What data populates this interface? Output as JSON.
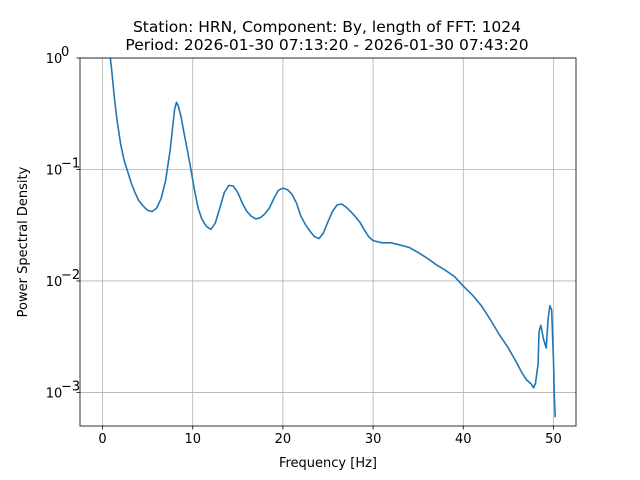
{
  "chart_data": {
    "type": "line",
    "title": "Station: HRN, Component: By, length of FFT: 1024",
    "subtitle": "Period: 2026-01-30 07:13:20 - 2026-01-30 07:43:20",
    "xlabel": "Frequency [Hz]",
    "ylabel": "Power Spectral Density",
    "xlim": [
      -2.5,
      52.5
    ],
    "ylim": [
      0.0005,
      1
    ],
    "yscale": "log",
    "grid": true,
    "xticks": [
      0,
      10,
      20,
      30,
      40,
      50
    ],
    "xtick_labels": [
      "0",
      "10",
      "20",
      "30",
      "40",
      "50"
    ],
    "yticks": [
      0.001,
      0.01,
      0.1,
      1
    ],
    "ytick_labels": [
      [
        "10",
        "−3"
      ],
      [
        "10",
        "−2"
      ],
      [
        "10",
        "−1"
      ],
      [
        "10",
        "0"
      ]
    ],
    "series": [
      {
        "color": "#1f77b4",
        "points": [
          [
            0.7,
            1.3
          ],
          [
            1.0,
            0.8
          ],
          [
            1.3,
            0.45
          ],
          [
            1.6,
            0.28
          ],
          [
            2.0,
            0.17
          ],
          [
            2.4,
            0.12
          ],
          [
            2.8,
            0.095
          ],
          [
            3.2,
            0.075
          ],
          [
            3.6,
            0.062
          ],
          [
            4.0,
            0.053
          ],
          [
            4.5,
            0.047
          ],
          [
            5.0,
            0.043
          ],
          [
            5.5,
            0.042
          ],
          [
            6.0,
            0.045
          ],
          [
            6.5,
            0.055
          ],
          [
            7.0,
            0.08
          ],
          [
            7.5,
            0.15
          ],
          [
            7.8,
            0.25
          ],
          [
            8.0,
            0.35
          ],
          [
            8.2,
            0.4
          ],
          [
            8.4,
            0.37
          ],
          [
            8.7,
            0.3
          ],
          [
            9.0,
            0.22
          ],
          [
            9.4,
            0.15
          ],
          [
            9.8,
            0.1
          ],
          [
            10.2,
            0.065
          ],
          [
            10.6,
            0.045
          ],
          [
            11.0,
            0.036
          ],
          [
            11.5,
            0.031
          ],
          [
            12.0,
            0.029
          ],
          [
            12.5,
            0.033
          ],
          [
            13.0,
            0.045
          ],
          [
            13.5,
            0.062
          ],
          [
            14.0,
            0.072
          ],
          [
            14.5,
            0.071
          ],
          [
            15.0,
            0.062
          ],
          [
            15.5,
            0.05
          ],
          [
            16.0,
            0.042
          ],
          [
            16.5,
            0.038
          ],
          [
            17.0,
            0.036
          ],
          [
            17.5,
            0.037
          ],
          [
            18.0,
            0.04
          ],
          [
            18.5,
            0.045
          ],
          [
            19.0,
            0.055
          ],
          [
            19.5,
            0.065
          ],
          [
            20.0,
            0.068
          ],
          [
            20.5,
            0.066
          ],
          [
            21.0,
            0.06
          ],
          [
            21.5,
            0.05
          ],
          [
            22.0,
            0.038
          ],
          [
            22.5,
            0.032
          ],
          [
            23.0,
            0.028
          ],
          [
            23.5,
            0.025
          ],
          [
            24.0,
            0.024
          ],
          [
            24.5,
            0.027
          ],
          [
            25.0,
            0.034
          ],
          [
            25.5,
            0.042
          ],
          [
            26.0,
            0.048
          ],
          [
            26.5,
            0.049
          ],
          [
            27.0,
            0.046
          ],
          [
            27.5,
            0.042
          ],
          [
            28.0,
            0.038
          ],
          [
            28.5,
            0.034
          ],
          [
            29.0,
            0.029
          ],
          [
            29.5,
            0.025
          ],
          [
            30.0,
            0.023
          ],
          [
            31.0,
            0.022
          ],
          [
            32.0,
            0.022
          ],
          [
            33.0,
            0.021
          ],
          [
            34.0,
            0.02
          ],
          [
            35.0,
            0.018
          ],
          [
            36.0,
            0.016
          ],
          [
            37.0,
            0.014
          ],
          [
            38.0,
            0.0125
          ],
          [
            39.0,
            0.011
          ],
          [
            40.0,
            0.009
          ],
          [
            41.0,
            0.0075
          ],
          [
            42.0,
            0.006
          ],
          [
            43.0,
            0.0045
          ],
          [
            44.0,
            0.0033
          ],
          [
            45.0,
            0.0025
          ],
          [
            46.0,
            0.0018
          ],
          [
            46.5,
            0.0015
          ],
          [
            47.0,
            0.0013
          ],
          [
            47.5,
            0.0012
          ],
          [
            47.8,
            0.0011
          ],
          [
            48.0,
            0.0012
          ],
          [
            48.3,
            0.0018
          ],
          [
            48.4,
            0.0035
          ],
          [
            48.6,
            0.004
          ],
          [
            48.9,
            0.003
          ],
          [
            49.2,
            0.0025
          ],
          [
            49.4,
            0.0045
          ],
          [
            49.6,
            0.006
          ],
          [
            49.8,
            0.0055
          ],
          [
            50.0,
            0.002
          ],
          [
            50.1,
            0.0009
          ],
          [
            50.2,
            0.0006
          ]
        ]
      }
    ]
  }
}
